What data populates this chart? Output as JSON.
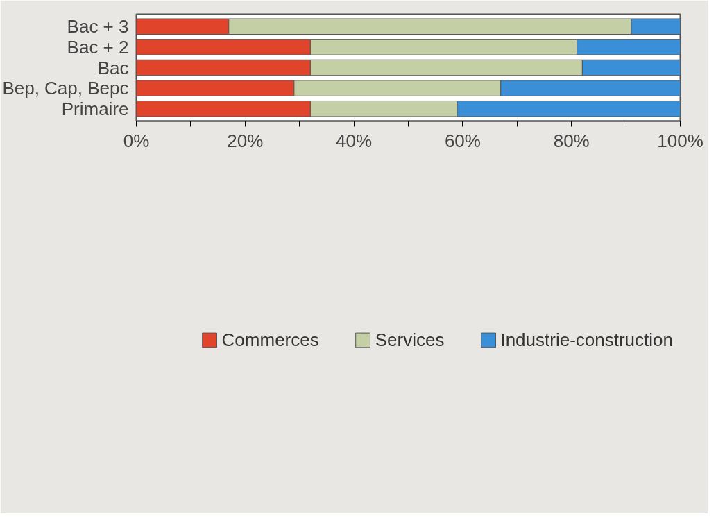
{
  "chart_data": {
    "type": "bar",
    "orientation": "horizontal",
    "stacked": true,
    "categories": [
      "Bac + 3",
      "Bac + 2",
      "Bac",
      "Bep, Cap, Bepc",
      "Primaire"
    ],
    "series": [
      {
        "name": "Commerces",
        "color": "#e0442a",
        "values": [
          17,
          32,
          32,
          29,
          32
        ]
      },
      {
        "name": "Services",
        "color": "#c5cfa6",
        "values": [
          74,
          49,
          50,
          38,
          27
        ]
      },
      {
        "name": "Industrie-construction",
        "color": "#3a8fd6",
        "values": [
          9,
          19,
          18,
          33,
          41
        ]
      }
    ],
    "xlim": [
      0,
      100
    ],
    "xticks": [
      {
        "value": 0,
        "label": "0%"
      },
      {
        "value": 10,
        "label": null
      },
      {
        "value": 20,
        "label": "20%"
      },
      {
        "value": 30,
        "label": null
      },
      {
        "value": 40,
        "label": "40%"
      },
      {
        "value": 50,
        "label": null
      },
      {
        "value": 60,
        "label": "60%"
      },
      {
        "value": 70,
        "label": null
      },
      {
        "value": 80,
        "label": "80%"
      },
      {
        "value": 90,
        "label": null
      },
      {
        "value": 100,
        "label": "100%"
      }
    ],
    "grid": false,
    "legend": "bottom"
  }
}
